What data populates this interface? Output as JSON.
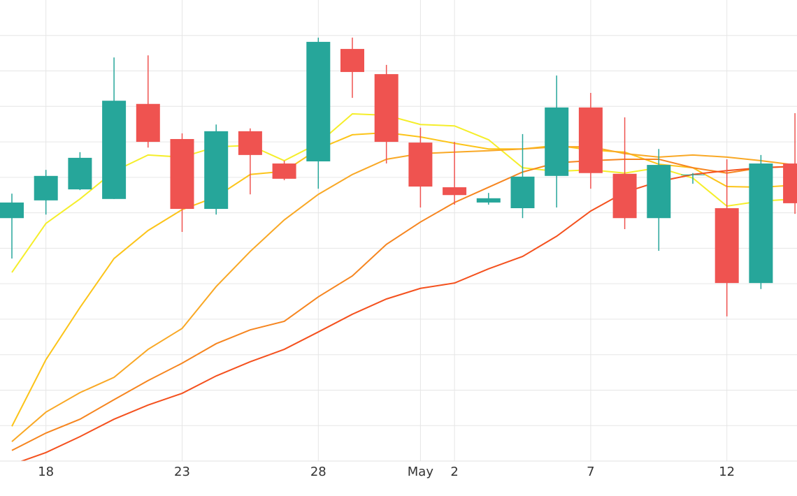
{
  "chart_data": {
    "type": "candlestick",
    "categories": [
      null,
      "18",
      null,
      null,
      null,
      "23",
      null,
      null,
      null,
      "28",
      null,
      null,
      "May",
      "2",
      null,
      null,
      null,
      "7",
      null,
      null,
      null,
      "12",
      null,
      null
    ],
    "up_color": "#26a69a",
    "down_color": "#ef5350",
    "candles": [
      {
        "open": 6.85,
        "high": 7.54,
        "low": 5.71,
        "close": 7.29
      },
      {
        "open": 7.35,
        "high": 8.21,
        "low": 6.95,
        "close": 8.04
      },
      {
        "open": 7.66,
        "high": 8.71,
        "low": 7.64,
        "close": 8.55
      },
      {
        "open": 7.39,
        "high": 11.38,
        "low": 7.39,
        "close": 10.16
      },
      {
        "open": 10.07,
        "high": 11.44,
        "low": 8.84,
        "close": 9.0
      },
      {
        "open": 9.08,
        "high": 9.24,
        "low": 6.46,
        "close": 7.11
      },
      {
        "open": 7.11,
        "high": 9.49,
        "low": 6.95,
        "close": 9.3
      },
      {
        "open": 9.3,
        "high": 9.38,
        "low": 7.52,
        "close": 8.63
      },
      {
        "open": 8.39,
        "high": 8.47,
        "low": 7.92,
        "close": 7.96
      },
      {
        "open": 8.45,
        "high": 11.94,
        "low": 7.68,
        "close": 11.82
      },
      {
        "open": 11.62,
        "high": 11.94,
        "low": 10.24,
        "close": 10.97
      },
      {
        "open": 10.91,
        "high": 11.17,
        "low": 8.39,
        "close": 9.0
      },
      {
        "open": 8.98,
        "high": 9.4,
        "low": 7.15,
        "close": 7.74
      },
      {
        "open": 7.72,
        "high": 9.0,
        "low": 7.23,
        "close": 7.5
      },
      {
        "open": 7.29,
        "high": 7.56,
        "low": 7.23,
        "close": 7.41
      },
      {
        "open": 7.13,
        "high": 9.22,
        "low": 6.85,
        "close": 8.02
      },
      {
        "open": 8.04,
        "high": 10.87,
        "low": 7.15,
        "close": 9.97
      },
      {
        "open": 9.97,
        "high": 10.38,
        "low": 7.68,
        "close": 8.12
      },
      {
        "open": 8.1,
        "high": 9.69,
        "low": 6.54,
        "close": 6.85
      },
      {
        "open": 6.85,
        "high": 8.8,
        "low": 5.93,
        "close": 8.35
      },
      {
        "open": 8.08,
        "high": 8.12,
        "low": 7.82,
        "close": 8.08
      },
      {
        "open": 7.13,
        "high": 8.51,
        "low": 4.08,
        "close": 5.02
      },
      {
        "open": 5.02,
        "high": 8.63,
        "low": 4.85,
        "close": 8.39
      },
      {
        "open": 8.39,
        "high": 9.81,
        "low": 6.97,
        "close": 7.27
      }
    ],
    "series": [
      {
        "color": "#f5ee2a",
        "values": [
          5.32,
          6.7,
          7.39,
          8.17,
          8.63,
          8.57,
          8.86,
          8.9,
          8.47,
          8.96,
          9.79,
          9.75,
          9.49,
          9.45,
          9.06,
          8.27,
          8.17,
          8.21,
          8.12,
          8.27,
          7.98,
          7.19,
          7.33,
          7.39
        ]
      },
      {
        "color": "#fcc419",
        "values": [
          0.98,
          2.86,
          4.33,
          5.71,
          6.5,
          7.09,
          7.45,
          8.08,
          8.17,
          8.8,
          9.2,
          9.26,
          9.14,
          8.96,
          8.8,
          8.8,
          8.9,
          8.77,
          8.71,
          8.37,
          8.27,
          7.74,
          7.72,
          7.78
        ]
      },
      {
        "color": "#f9a825",
        "values": [
          0.55,
          1.38,
          1.93,
          2.36,
          3.15,
          3.74,
          4.92,
          5.91,
          6.8,
          7.52,
          8.08,
          8.51,
          8.67,
          8.71,
          8.75,
          8.8,
          8.86,
          8.86,
          8.67,
          8.57,
          8.63,
          8.57,
          8.47,
          8.35
        ]
      },
      {
        "color": "#f6851f",
        "values": [
          0.3,
          0.79,
          1.18,
          1.73,
          2.27,
          2.76,
          3.31,
          3.7,
          3.94,
          4.63,
          5.22,
          6.11,
          6.74,
          7.29,
          7.72,
          8.15,
          8.41,
          8.47,
          8.51,
          8.51,
          8.27,
          8.12,
          8.27,
          8.31
        ]
      },
      {
        "color": "#f4511e",
        "values": [
          -0.1,
          0.24,
          0.69,
          1.18,
          1.58,
          1.91,
          2.4,
          2.8,
          3.15,
          3.64,
          4.14,
          4.57,
          4.87,
          5.02,
          5.42,
          5.77,
          6.34,
          7.05,
          7.58,
          7.88,
          8.08,
          8.19,
          8.27,
          8.31
        ]
      }
    ],
    "ylim": [
      0,
      13
    ],
    "yticks": [
      0,
      1,
      2,
      3,
      4,
      5,
      6,
      7,
      8,
      9,
      10,
      11,
      12
    ],
    "grid": true
  }
}
